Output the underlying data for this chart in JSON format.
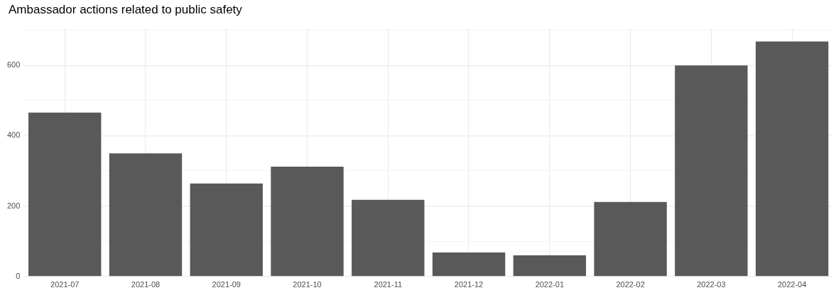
{
  "chart_data": {
    "type": "bar",
    "title": "Ambassador actions related to public safety",
    "categories": [
      "2021-07",
      "2021-08",
      "2021-09",
      "2021-10",
      "2021-11",
      "2021-12",
      "2022-01",
      "2022-02",
      "2022-03",
      "2022-04"
    ],
    "values": [
      466,
      350,
      264,
      312,
      218,
      68,
      60,
      212,
      600,
      668
    ],
    "color": "#595959",
    "ylim": [
      0,
      704
    ],
    "yticks": [
      0,
      {
        "value": 100,
        "label": null
      },
      200,
      {
        "value": 300,
        "label": null
      },
      400,
      {
        "value": 500,
        "label": null
      },
      600,
      {
        "value": 700,
        "label": null
      }
    ],
    "grid": true,
    "legend": false
  }
}
